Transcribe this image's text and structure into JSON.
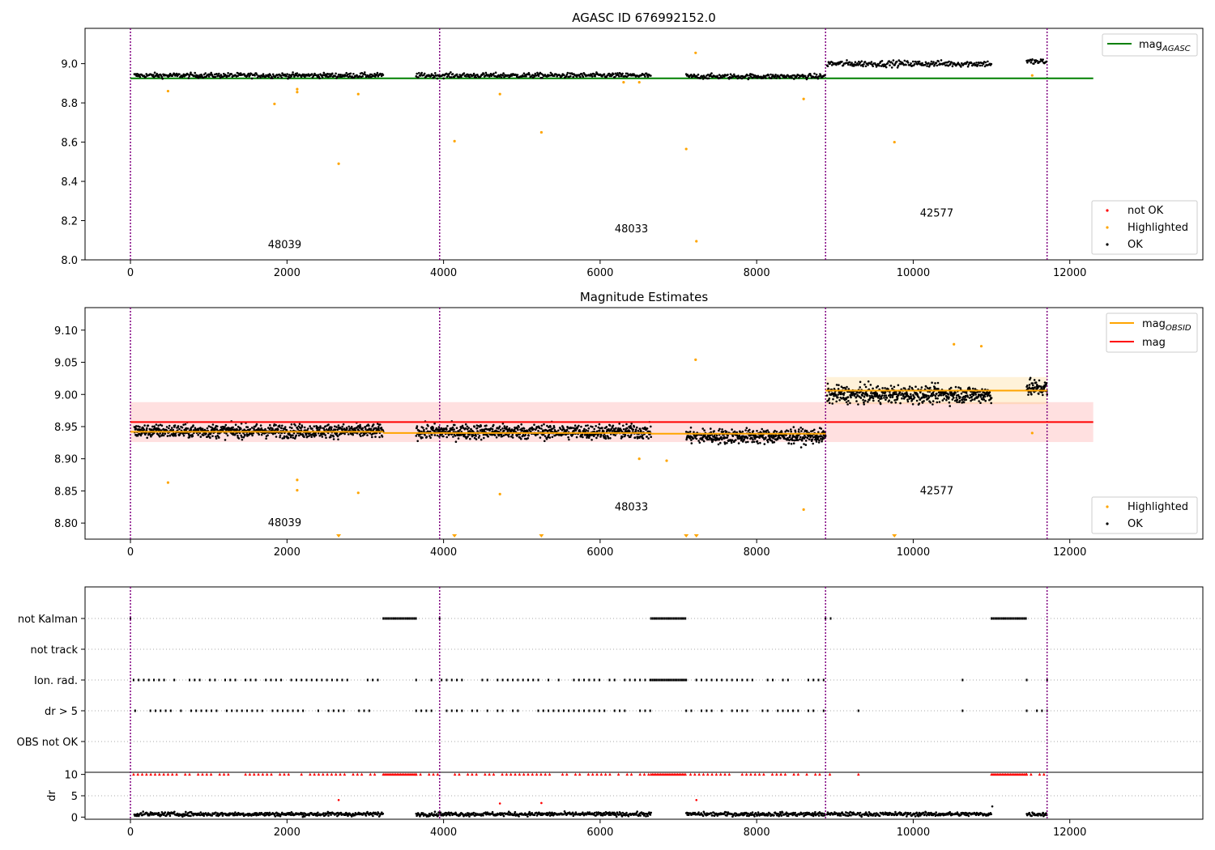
{
  "chart_data": [
    {
      "type": "scatter",
      "title": "AGASC ID 676992152.0",
      "xlim": [
        -580,
        13700
      ],
      "ylim": [
        8.0,
        9.18
      ],
      "xticks": [
        "0",
        "2000",
        "4000",
        "6000",
        "8000",
        "10000",
        "12000"
      ],
      "xtick_values": [
        0,
        2000,
        4000,
        6000,
        8000,
        10000,
        12000
      ],
      "yticks": [
        "8.0",
        "8.2",
        "8.4",
        "8.6",
        "8.8",
        "9.0"
      ],
      "ytick_values": [
        8.0,
        8.2,
        8.4,
        8.6,
        8.8,
        9.0
      ],
      "obsid_boundaries": [
        0,
        3950,
        8880,
        11710
      ],
      "obsid_labels": [
        {
          "text": "48039",
          "x": 1970,
          "y": 8.06
        },
        {
          "text": "48033",
          "x": 6400,
          "y": 8.14
        },
        {
          "text": "42577",
          "x": 10300,
          "y": 8.22
        }
      ],
      "mag_agasc": {
        "name": "mag_AGASC",
        "value": 8.925,
        "x": [
          0,
          12300
        ],
        "color": "#008000"
      },
      "ok_segments": [
        {
          "x": [
            50,
            3230
          ],
          "level": 8.94,
          "spread": 0.012
        },
        {
          "x": [
            3650,
            6650
          ],
          "level": 8.94,
          "spread": 0.012
        },
        {
          "x": [
            7100,
            8880
          ],
          "level": 8.935,
          "spread": 0.012
        },
        {
          "x": [
            8900,
            11000
          ],
          "level": 9.0,
          "spread": 0.015
        },
        {
          "x": [
            11450,
            11710
          ],
          "level": 9.01,
          "spread": 0.015
        }
      ],
      "highlighted_points": [
        {
          "x": 480,
          "y": 8.86
        },
        {
          "x": 1840,
          "y": 8.795
        },
        {
          "x": 2130,
          "y": 8.87
        },
        {
          "x": 2130,
          "y": 8.855
        },
        {
          "x": 2660,
          "y": 8.49
        },
        {
          "x": 2910,
          "y": 8.845
        },
        {
          "x": 4140,
          "y": 8.605
        },
        {
          "x": 4720,
          "y": 8.845
        },
        {
          "x": 5250,
          "y": 8.65
        },
        {
          "x": 7100,
          "y": 8.565
        },
        {
          "x": 7220,
          "y": 9.055
        },
        {
          "x": 7230,
          "y": 8.095
        },
        {
          "x": 8600,
          "y": 8.82
        },
        {
          "x": 9760,
          "y": 8.6
        },
        {
          "x": 11520,
          "y": 8.94
        },
        {
          "x": 6300,
          "y": 8.905
        },
        {
          "x": 6500,
          "y": 8.905
        }
      ],
      "legend": [
        {
          "label": "not OK",
          "color": "#ff0000"
        },
        {
          "label": "Highlighted",
          "color": "#ffa500"
        },
        {
          "label": "OK",
          "color": "#000000"
        }
      ]
    },
    {
      "type": "scatter",
      "title": "Magnitude Estimates",
      "xlim": [
        -580,
        13700
      ],
      "ylim": [
        8.775,
        9.135
      ],
      "xticks": [
        "0",
        "2000",
        "4000",
        "6000",
        "8000",
        "10000",
        "12000"
      ],
      "xtick_values": [
        0,
        2000,
        4000,
        6000,
        8000,
        10000,
        12000
      ],
      "yticks": [
        "8.80",
        "8.85",
        "8.90",
        "8.95",
        "9.00",
        "9.05",
        "9.10"
      ],
      "ytick_values": [
        8.8,
        8.85,
        8.9,
        8.95,
        9.0,
        9.05,
        9.1
      ],
      "obsid_boundaries": [
        0,
        3950,
        8880,
        11710
      ],
      "obsid_labels": [
        {
          "text": "48039",
          "x": 1970,
          "y": 8.795
        },
        {
          "text": "48033",
          "x": 6400,
          "y": 8.82
        },
        {
          "text": "42577",
          "x": 10300,
          "y": 8.845
        }
      ],
      "mag": {
        "name": "mag",
        "value": 8.957,
        "band": [
          8.926,
          8.988
        ],
        "x": [
          0,
          12300
        ],
        "color": "#ff0000"
      },
      "mag_obsid": [
        {
          "x": [
            0,
            3230
          ],
          "value": 8.942
        },
        {
          "x": [
            3230,
            6650
          ],
          "value": 8.94
        },
        {
          "x": [
            6650,
            8880
          ],
          "value": 8.939
        },
        {
          "x": [
            8880,
            11710
          ],
          "value": 9.006,
          "band": [
            8.985,
            9.027
          ]
        }
      ],
      "ok_segments": [
        {
          "x": [
            50,
            3230
          ],
          "level": 8.943,
          "spread": 0.01
        },
        {
          "x": [
            3650,
            6650
          ],
          "level": 8.942,
          "spread": 0.011
        },
        {
          "x": [
            7100,
            8880
          ],
          "level": 8.935,
          "spread": 0.011
        },
        {
          "x": [
            8900,
            11000
          ],
          "level": 9.0,
          "spread": 0.013
        },
        {
          "x": [
            11450,
            11710
          ],
          "level": 9.01,
          "spread": 0.013
        }
      ],
      "highlighted_points": [
        {
          "x": 480,
          "y": 8.863
        },
        {
          "x": 2130,
          "y": 8.867
        },
        {
          "x": 2130,
          "y": 8.851
        },
        {
          "x": 2910,
          "y": 8.847
        },
        {
          "x": 4720,
          "y": 8.845
        },
        {
          "x": 8600,
          "y": 8.821
        },
        {
          "x": 7220,
          "y": 9.054
        },
        {
          "x": 11520,
          "y": 8.94
        },
        {
          "x": 10520,
          "y": 9.078
        },
        {
          "x": 10870,
          "y": 9.075
        },
        {
          "x": 6850,
          "y": 8.897
        },
        {
          "x": 6500,
          "y": 8.9
        }
      ],
      "below_range_markers": [
        2660,
        4140,
        5250,
        7100,
        7230,
        9760
      ],
      "legend_lines": [
        {
          "label": "mag_OBSID",
          "color": "#ffa500"
        },
        {
          "label": "mag",
          "color": "#ff0000"
        }
      ],
      "legend": [
        {
          "label": "Highlighted",
          "color": "#ffa500"
        },
        {
          "label": "OK",
          "color": "#000000"
        }
      ]
    },
    {
      "type": "scatter",
      "title": "",
      "xlim": [
        -580,
        13700
      ],
      "xticks": [
        "0",
        "2000",
        "4000",
        "6000",
        "8000",
        "10000",
        "12000"
      ],
      "xtick_values": [
        0,
        2000,
        4000,
        6000,
        8000,
        10000,
        12000
      ],
      "flag_rows": [
        "not Kalman",
        "not track",
        "Ion. rad.",
        "dr > 5",
        "OBS not OK"
      ],
      "flags": {
        "not Kalman": [
          [
            0,
            60
          ],
          [
            3230,
            3650
          ],
          [
            3950,
            4000
          ],
          [
            6650,
            7100
          ],
          [
            8880,
            8950
          ],
          [
            11000,
            11450
          ]
        ],
        "not track": [],
        "Ion. rad.": [
          [
            40,
            3230
          ],
          [
            3650,
            6650
          ],
          [
            6650,
            7100
          ],
          [
            7100,
            8880
          ],
          [
            9300,
            9320
          ],
          [
            10630,
            10690
          ],
          [
            11450,
            11710
          ]
        ],
        "dr > 5": [
          [
            60,
            3230
          ],
          [
            3650,
            6650
          ],
          [
            7100,
            8880
          ],
          [
            9300,
            9320
          ],
          [
            10630,
            10690
          ],
          [
            11450,
            11710
          ]
        ],
        "OBS not OK": []
      },
      "dr_ylabel": "dr",
      "dr_yticks": [
        "0",
        "5",
        "10"
      ],
      "dr_ytick_values": [
        0,
        5,
        10
      ],
      "dr_ylim": [
        -0.5,
        10.5
      ],
      "dr_clip_segments": [
        [
          40,
          3230
        ],
        [
          3230,
          3650
        ],
        [
          3650,
          6650
        ],
        [
          6650,
          7100
        ],
        [
          7100,
          8880
        ],
        [
          8880,
          8950
        ],
        [
          9300,
          9320
        ],
        [
          10630,
          10690
        ],
        [
          11000,
          11450
        ],
        [
          11450,
          11710
        ]
      ],
      "dr_ok_segments": [
        [
          50,
          3230
        ],
        [
          3650,
          6650
        ],
        [
          7100,
          8880
        ],
        [
          8900,
          11000
        ],
        [
          11450,
          11710
        ]
      ],
      "dr_outliers": [
        {
          "x": 2660,
          "y": 4
        },
        {
          "x": 4720,
          "y": 3.2
        },
        {
          "x": 5250,
          "y": 3.3
        },
        {
          "x": 7230,
          "y": 4
        },
        {
          "x": 11010,
          "y": 2.5
        }
      ]
    }
  ]
}
